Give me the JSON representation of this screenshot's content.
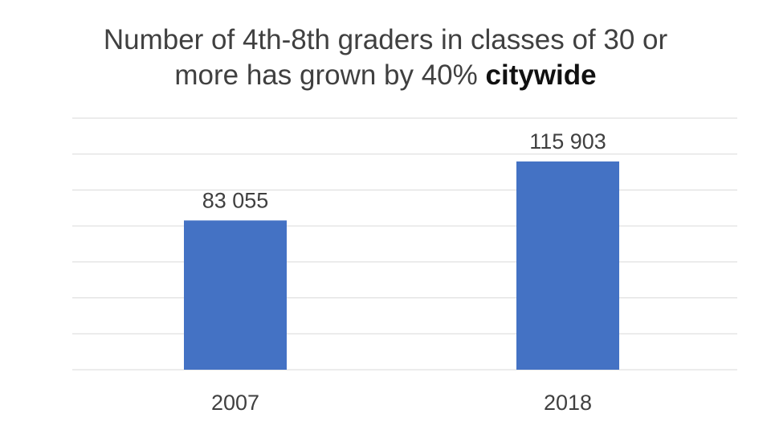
{
  "title": {
    "line1": "Number of 4th-8th graders in classes of 30 or",
    "line2": "more has grown by 40%",
    "emphasis": "citywide"
  },
  "chart_data": {
    "type": "bar",
    "categories": [
      "2007",
      "2018"
    ],
    "values": [
      83055,
      115903
    ],
    "data_labels": [
      "83 055",
      "115 903"
    ],
    "title": "Number of 4th-8th graders in classes of 30 or more has grown by 40% citywide",
    "xlabel": "",
    "ylabel": "",
    "ylim": [
      0,
      140000
    ],
    "grid": true,
    "legend": "none",
    "bar_color": "#4472C4",
    "grid_color": "#D9D9D9"
  }
}
